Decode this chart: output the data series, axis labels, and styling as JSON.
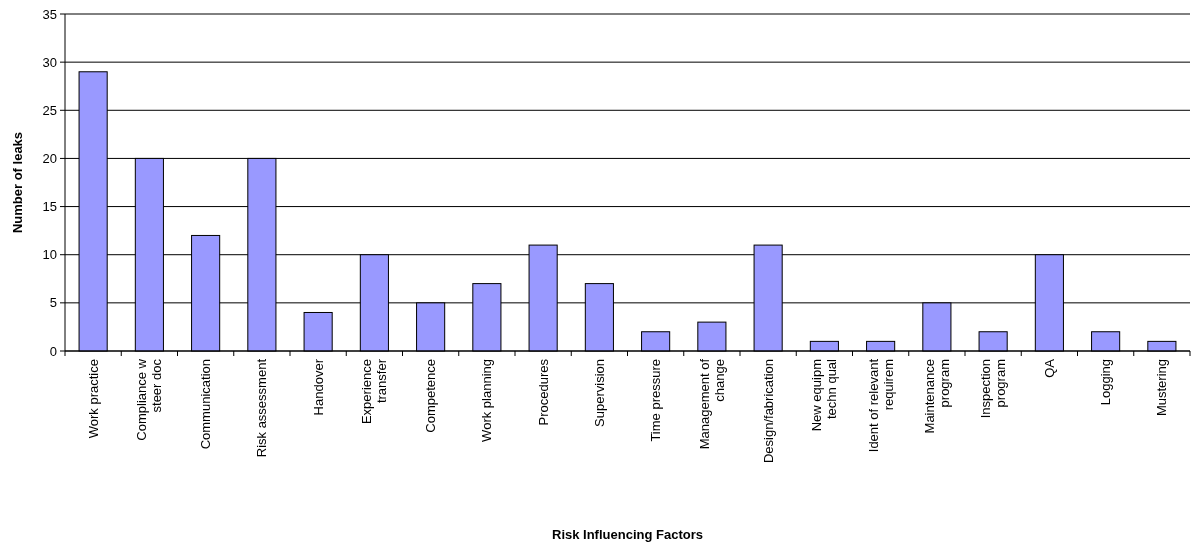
{
  "chart_data": {
    "type": "bar",
    "xlabel": "Risk Influencing Factors",
    "ylabel": "Number of leaks",
    "categories": [
      "Work practice",
      "Compliance w\nsteer doc",
      "Communication",
      "Risk assessment",
      "Handover",
      "Experience\ntransfer",
      "Competence",
      "Work planning",
      "Procedures",
      "Supervision",
      "Time pressure",
      "Management of\nchange",
      "Design/fabrication",
      "New equipm\ntechn qual",
      "Ident of relevant\nrequirem",
      "Maintenance\nprogram",
      "Inspection\nprogram",
      "QA",
      "Logging",
      "Mustering"
    ],
    "values": [
      29,
      20,
      12,
      20,
      4,
      10,
      5,
      7,
      11,
      7,
      2,
      3,
      11,
      1,
      1,
      5,
      2,
      10,
      2,
      1
    ],
    "color": "#9999ff",
    "ylim": [
      0,
      35
    ],
    "yticks": [
      0,
      5,
      10,
      15,
      20,
      25,
      30,
      35
    ],
    "grid": "y"
  }
}
